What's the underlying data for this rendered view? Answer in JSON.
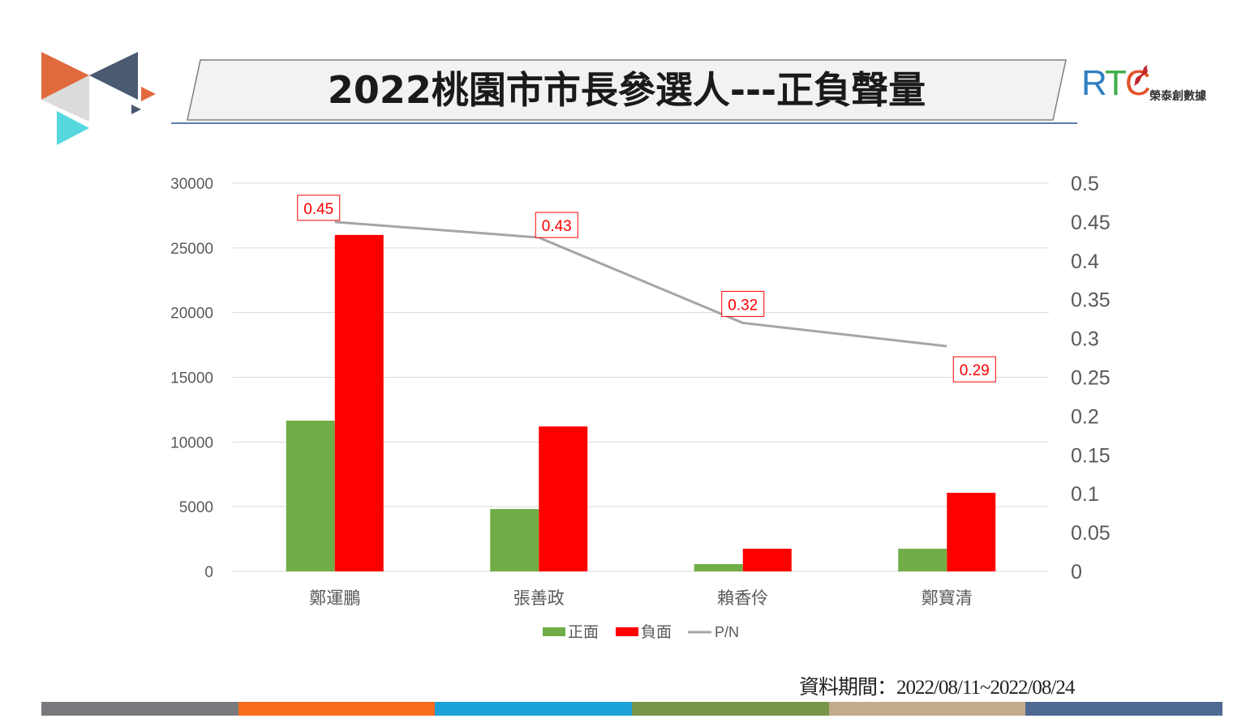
{
  "title": "2022桃園市市長參選人---正負聲量",
  "logo_brand": {
    "letters": [
      "R",
      "T",
      "C"
    ],
    "chinese": "榮泰創數據"
  },
  "source_note": "資料期間：2022/08/11~2022/08/24",
  "footer_colors": [
    "#7a7a7e",
    "#f86c1e",
    "#1ca2d9",
    "#7a964a",
    "#c2ab8b",
    "#4e6a93"
  ],
  "chart_data": {
    "type": "bar",
    "categories": [
      "鄭運鵬",
      "張善政",
      "賴香伶",
      "鄭寶清"
    ],
    "series": [
      {
        "name": "正面",
        "axis": "left",
        "type": "bar",
        "color": "#70ad47",
        "values": [
          11650,
          4820,
          560,
          1750
        ]
      },
      {
        "name": "負面",
        "axis": "left",
        "type": "bar",
        "color": "#ff0000",
        "values": [
          26000,
          11200,
          1750,
          6070
        ]
      },
      {
        "name": "P/N",
        "axis": "right",
        "type": "line",
        "color": "#a5a5a5",
        "values": [
          0.45,
          0.43,
          0.32,
          0.29
        ],
        "labels": [
          "0.45",
          "0.43",
          "0.32",
          "0.29"
        ]
      }
    ],
    "ylim": [
      0,
      30000
    ],
    "yticks": [
      "0",
      "5000",
      "10000",
      "15000",
      "20000",
      "25000",
      "30000"
    ],
    "y2lim": [
      0,
      0.5
    ],
    "y2ticks": [
      "0",
      "0.05",
      "0.1",
      "0.15",
      "0.2",
      "0.25",
      "0.3",
      "0.35",
      "0.4",
      "0.45",
      "0.5"
    ],
    "grid": true,
    "legend": "bottom",
    "legend_labels": [
      "正面",
      "負面",
      "P/N"
    ]
  }
}
